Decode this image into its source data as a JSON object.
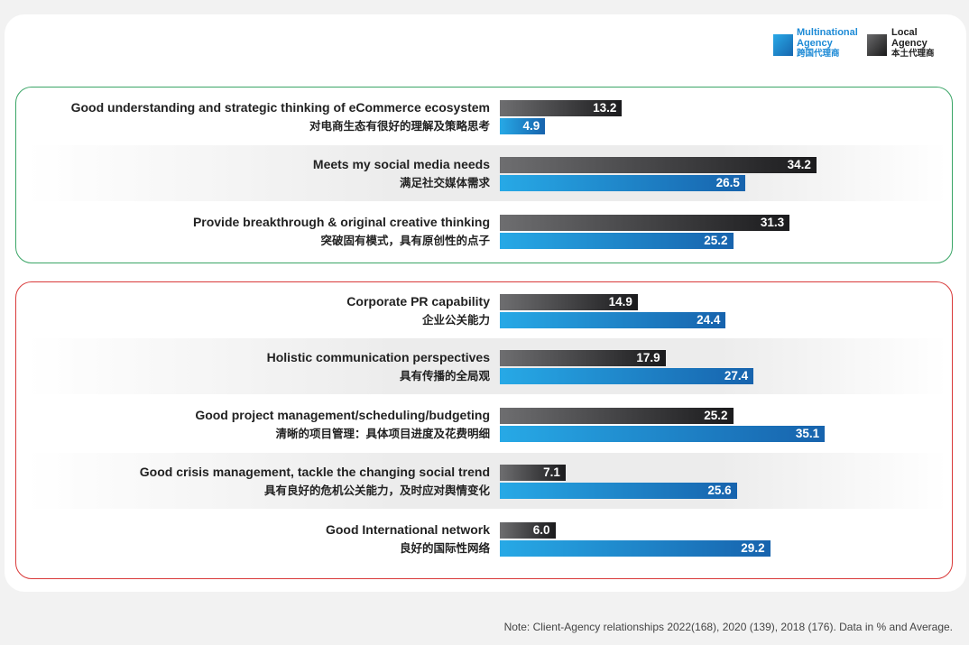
{
  "legend": {
    "multinational": {
      "line1": "Multinational",
      "line2": "Agency",
      "zh": "跨国代理商",
      "color": "#1e8bd6"
    },
    "local": {
      "line1": "Local",
      "line2": "Agency",
      "zh": "本土代理商",
      "color": "#222222"
    }
  },
  "note": "Note: Client-Agency relationships 2022(168), 2020 (139), 2018 (176). Data in % and Average.",
  "chart_data": {
    "type": "bar",
    "orientation": "horizontal",
    "series": [
      {
        "name": "Local Agency 本土代理商",
        "values": [
          13.2,
          34.2,
          31.3,
          14.9,
          17.9,
          25.2,
          7.1,
          6.0
        ]
      },
      {
        "name": "Multinational Agency 跨国代理商",
        "values": [
          4.9,
          26.5,
          25.2,
          24.4,
          27.4,
          35.1,
          25.6,
          29.2
        ]
      }
    ],
    "categories": [
      {
        "en": "Good understanding and strategic thinking of eCommerce ecosystem",
        "zh": "对电商生态有很好的理解及策略思考",
        "group": "green"
      },
      {
        "en": "Meets my social media needs",
        "zh": "满足社交媒体需求",
        "group": "green"
      },
      {
        "en": "Provide breakthrough & original creative thinking",
        "zh": "突破固有模式，具有原创性的点子",
        "group": "green"
      },
      {
        "en": "Corporate PR capability",
        "zh": "企业公关能力",
        "group": "red"
      },
      {
        "en": "Holistic communication perspectives",
        "zh": "具有传播的全局观",
        "group": "red"
      },
      {
        "en": "Good project management/scheduling/budgeting",
        "zh": "清晰的项目管理：具体项目进度及花费明细",
        "group": "red"
      },
      {
        "en": "Good crisis management, tackle the changing social trend",
        "zh": "具有良好的危机公关能力，及时应对舆情变化",
        "group": "red"
      },
      {
        "en": "Good International network",
        "zh": "良好的国际性网络",
        "group": "red"
      }
    ],
    "xlim": [
      0,
      36
    ],
    "group_colors": {
      "green": "#3aa566",
      "red": "#d93a3a"
    }
  }
}
